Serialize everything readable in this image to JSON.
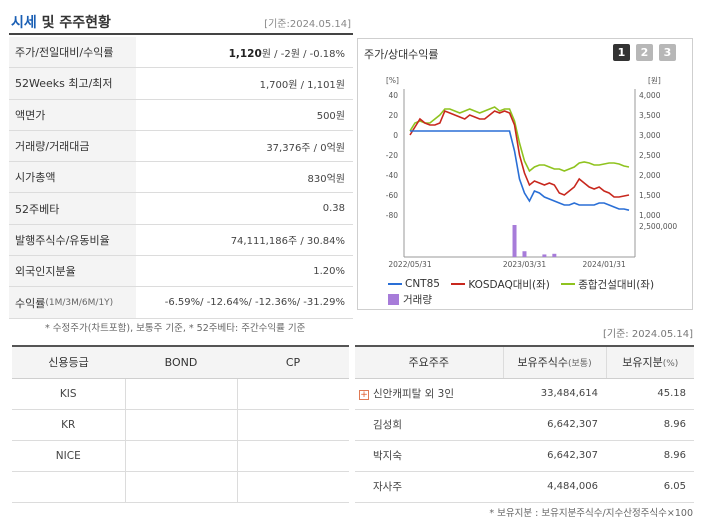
{
  "header": {
    "title_main": "시세",
    "title_rest": " 및 주주현황",
    "asof": "[기준:2024.05.14]"
  },
  "summary": {
    "rows": [
      {
        "label": "주가/전일대비/수익률",
        "value_bold": "1,120",
        "value_rest": "원 / -2원 / -0.18%"
      },
      {
        "label": "52Weeks 최고/최저",
        "value": "1,700원 / 1,101원"
      },
      {
        "label": "액면가",
        "value": "500원"
      },
      {
        "label": "거래량/거래대금",
        "value": "37,376주 / 0억원"
      },
      {
        "label": "시가총액",
        "value": "830억원"
      },
      {
        "label": "52주베타",
        "value": "0.38"
      },
      {
        "label": "발행주식수/유동비율",
        "value": "74,111,186주 / 30.84%"
      },
      {
        "label": "외국인지분율",
        "value": "1.20%"
      },
      {
        "label": "수익률",
        "label_small": " (1M/3M/6M/1Y)",
        "value": "-6.59%/ -12.64%/ -12.36%/ -31.29%"
      }
    ],
    "footnote": "* 수정주가(차트포함), 보통주 기준, * 52주베타: 주간수익률 기준"
  },
  "chart_panel": {
    "title": "주가/상대수익률",
    "period_buttons": [
      "1",
      "2",
      "3"
    ],
    "left_axis_unit": "[%]",
    "right_axis_unit": "[원]",
    "legend": [
      "CNT85",
      "KOSDAQ대비(좌)",
      "종합건설대비(좌)",
      "거래량"
    ],
    "colors": {
      "cnt85": "#2a6fd6",
      "kosdaq": "#c8281e",
      "construction": "#8fc31f",
      "volume": "#a77cd9"
    }
  },
  "chart_data": {
    "type": "line",
    "x_ticks": [
      "2022/05/31",
      "2023/03/31",
      "2024/01/31"
    ],
    "y_left_ticks": [
      "40",
      "20",
      "0",
      "-20",
      "-40",
      "-60",
      "-80"
    ],
    "y_left_range": [
      -80,
      40
    ],
    "y_right_ticks": [
      "4,000",
      "3,500",
      "3,000",
      "2,500",
      "2,000",
      "1,500",
      "1,000"
    ],
    "y_right_range": [
      1000,
      4000
    ],
    "volume_tick": "2,500,000",
    "series": [
      {
        "name": "CNT85",
        "axis": "right",
        "values": [
          3100,
          3100,
          3100,
          3100,
          3100,
          3100,
          3100,
          3100,
          3100,
          3100,
          3100,
          3100,
          3100,
          3100,
          3100,
          3100,
          3100,
          3100,
          3100,
          3100,
          3100,
          2600,
          1900,
          1550,
          1350,
          1600,
          1550,
          1450,
          1400,
          1350,
          1300,
          1250,
          1250,
          1300,
          1250,
          1250,
          1250,
          1250,
          1300,
          1300,
          1250,
          1200,
          1150,
          1150,
          1120
        ]
      },
      {
        "name": "KOSDAQ대비(좌)",
        "axis": "left",
        "values": [
          0,
          8,
          16,
          12,
          10,
          10,
          12,
          24,
          22,
          20,
          18,
          16,
          20,
          18,
          16,
          16,
          20,
          24,
          22,
          24,
          22,
          10,
          -20,
          -38,
          -50,
          -46,
          -48,
          -50,
          -48,
          -50,
          -58,
          -60,
          -56,
          -52,
          -44,
          -48,
          -52,
          -54,
          -52,
          -56,
          -58,
          -62,
          -62,
          -61,
          -60
        ]
      },
      {
        "name": "종합건설대비(좌)",
        "axis": "left",
        "values": [
          4,
          12,
          14,
          12,
          12,
          16,
          20,
          26,
          26,
          24,
          22,
          24,
          26,
          24,
          22,
          24,
          26,
          28,
          24,
          26,
          26,
          14,
          -8,
          -26,
          -36,
          -32,
          -30,
          -30,
          -32,
          -34,
          -34,
          -36,
          -34,
          -32,
          -28,
          -27,
          -28,
          -30,
          -30,
          -29,
          -28,
          -28,
          -29,
          -31,
          -32
        ]
      },
      {
        "name": "거래량",
        "axis": "volume",
        "values": [
          0,
          0,
          0,
          0,
          0,
          0,
          0,
          0,
          0,
          0,
          0,
          0,
          0,
          0,
          0,
          0,
          0,
          0,
          0,
          0,
          0,
          2500000,
          0,
          450000,
          0,
          0,
          0,
          200000,
          0,
          250000,
          0,
          0,
          0,
          0,
          0,
          0,
          0,
          0,
          0,
          0,
          0,
          0,
          0,
          0,
          0
        ]
      }
    ]
  },
  "asof2": "[기준: 2024.05.14]",
  "ratings": {
    "headers": [
      "신용등급",
      "BOND",
      "CP"
    ],
    "rows": [
      {
        "agency": "KIS",
        "bond": "",
        "cp": ""
      },
      {
        "agency": "KR",
        "bond": "",
        "cp": ""
      },
      {
        "agency": "NICE",
        "bond": "",
        "cp": ""
      },
      {
        "agency": "",
        "bond": "",
        "cp": ""
      }
    ]
  },
  "shareholders": {
    "headers": [
      "주요주주",
      "보유주식수",
      "(보통)",
      "보유지분",
      "(%)"
    ],
    "rows": [
      {
        "name": "신안캐피탈 외 3인",
        "shares": "33,484,614",
        "pct": "45.18",
        "expandable": true
      },
      {
        "name": "김성희",
        "shares": "6,642,307",
        "pct": "8.96"
      },
      {
        "name": "박지숙",
        "shares": "6,642,307",
        "pct": "8.96"
      },
      {
        "name": "자사주",
        "shares": "4,484,006",
        "pct": "6.05"
      }
    ],
    "footnote": "* 보유지분 : 보유지분주식수/지수산정주식수×100"
  }
}
